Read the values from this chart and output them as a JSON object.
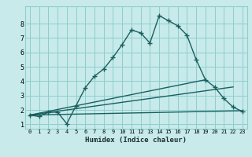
{
  "xlabel": "Humidex (Indice chaleur)",
  "bg_color": "#c8eaea",
  "grid_color": "#8ecece",
  "line_color": "#1a6060",
  "xlim": [
    -0.5,
    23.5
  ],
  "ylim": [
    0.7,
    9.2
  ],
  "x_ticks": [
    0,
    1,
    2,
    3,
    4,
    5,
    6,
    7,
    8,
    9,
    10,
    11,
    12,
    13,
    14,
    15,
    16,
    17,
    18,
    19,
    20,
    21,
    22,
    23
  ],
  "y_ticks": [
    1,
    2,
    3,
    4,
    5,
    6,
    7,
    8
  ],
  "curve1_x": [
    0,
    1,
    2,
    3,
    4,
    5,
    6,
    7,
    8,
    9,
    10,
    11,
    12,
    13,
    14,
    15,
    16,
    17,
    18,
    19,
    20,
    21,
    22,
    23
  ],
  "curve1_y": [
    1.65,
    1.55,
    1.85,
    1.85,
    1.05,
    2.3,
    3.55,
    4.35,
    4.85,
    5.65,
    6.55,
    7.55,
    7.35,
    6.65,
    8.55,
    8.2,
    7.85,
    7.2,
    5.5,
    4.1,
    3.6,
    2.8,
    2.2,
    1.9
  ],
  "line2_x": [
    0,
    23
  ],
  "line2_y": [
    1.65,
    1.95
  ],
  "line3_x": [
    0,
    22
  ],
  "line3_y": [
    1.65,
    3.6
  ],
  "line4_x": [
    0,
    19
  ],
  "line4_y": [
    1.65,
    4.1
  ]
}
